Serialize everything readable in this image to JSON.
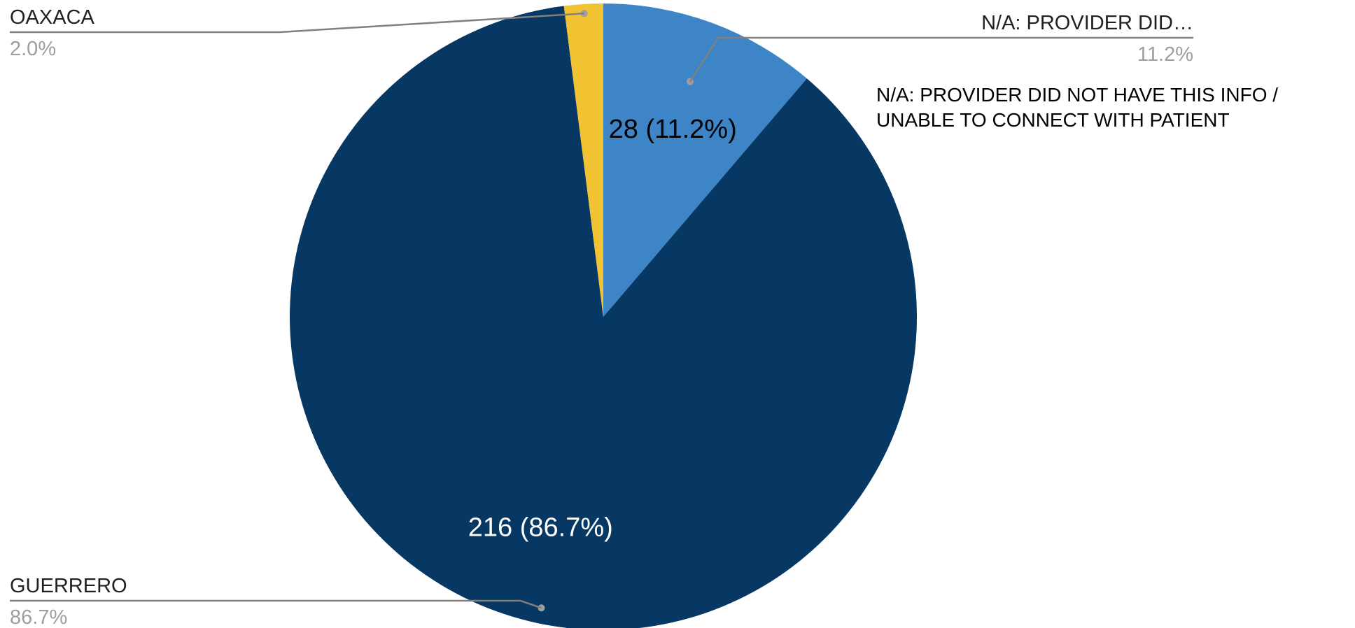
{
  "chart_data": {
    "type": "pie",
    "start_angle_deg": 0,
    "direction": "clockwise",
    "slices": [
      {
        "label": "N/A: PROVIDER DID…",
        "value": 28,
        "percent": "11.2%",
        "slice_label": "28 (11.2%)",
        "color": "#3d85c6",
        "slice_label_color": "#000000"
      },
      {
        "label": "GUERRERO",
        "value": 216,
        "percent": "86.7%",
        "slice_label": "216 (86.7%)",
        "color": "#073763",
        "slice_label_color": "#ffffff"
      },
      {
        "label": "OAXACA",
        "value": 5,
        "percent": "2.0%",
        "slice_label": "",
        "color": "#f1c232",
        "slice_label_color": "#000000"
      }
    ],
    "legend_line_color": "#808080",
    "percent_text_color": "#9e9e9e"
  },
  "annotation": {
    "lines": [
      "N/A: PROVIDER DID NOT HAVE THIS INFO /",
      "UNABLE TO CONNECT WITH PATIENT"
    ]
  }
}
